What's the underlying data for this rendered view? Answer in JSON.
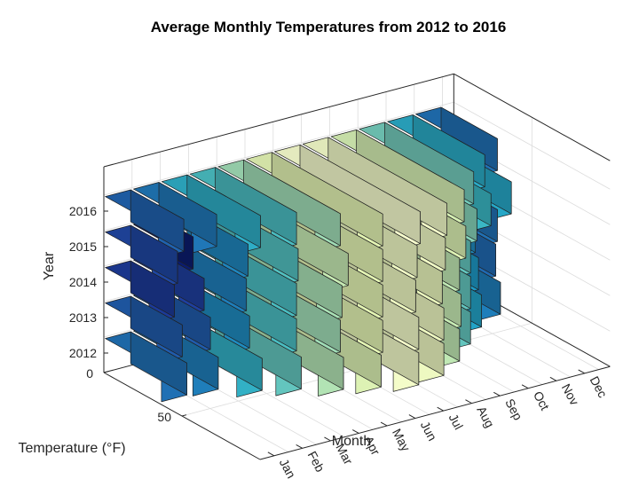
{
  "chart_data": {
    "type": "bar",
    "subtype": "3d-bar",
    "title": "Average Monthly Temperatures from 2012 to 2016",
    "xlabel": "Month",
    "ylabel": "Year",
    "zlabel": "Temperature (°F)",
    "categories": [
      "Jan",
      "Feb",
      "Mar",
      "Apr",
      "May",
      "Jun",
      "Jul",
      "Aug",
      "Sep",
      "Oct",
      "Nov",
      "Dec"
    ],
    "years": [
      "2012",
      "2013",
      "2014",
      "2015",
      "2016"
    ],
    "z_ticks": [
      "0",
      "50"
    ],
    "zlim": [
      0,
      100
    ],
    "colormap": [
      "#0b1c6e",
      "#1f3f9e",
      "#2070b4",
      "#1ea0c8",
      "#3ab7c4",
      "#73cbbb",
      "#b2e3b4",
      "#e4f5b4",
      "#fbffd2"
    ],
    "clim": [
      22,
      78
    ],
    "series": [
      {
        "name": "2012",
        "values": [
          36,
          38,
          48,
          55,
          64,
          70,
          76,
          74,
          66,
          55,
          44,
          38
        ]
      },
      {
        "name": "2013",
        "values": [
          33,
          33,
          40,
          52,
          62,
          71,
          76,
          74,
          67,
          55,
          42,
          35
        ]
      },
      {
        "name": "2014",
        "values": [
          28,
          29,
          38,
          52,
          63,
          71,
          74,
          73,
          66,
          55,
          40,
          36
        ]
      },
      {
        "name": "2015",
        "values": [
          30,
          22,
          39,
          53,
          67,
          71,
          75,
          75,
          70,
          59,
          50,
          45
        ]
      },
      {
        "name": "2016",
        "values": [
          34,
          37,
          47,
          52,
          62,
          71,
          77,
          76,
          69,
          57,
          46,
          36
        ]
      }
    ],
    "grid": true
  }
}
